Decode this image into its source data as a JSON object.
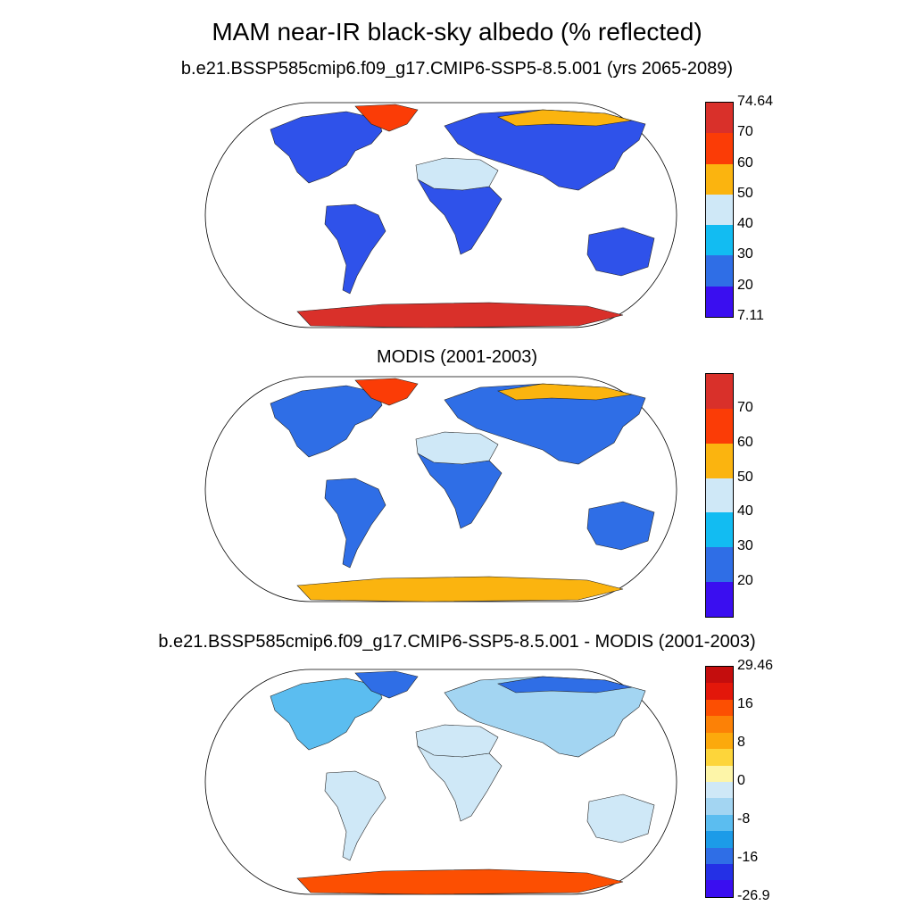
{
  "title": "MAM near-IR black-sky albedo (% reflected)",
  "panels": [
    {
      "title": "b.e21.BSSP585cmip6.f09_g17.CMIP6-SSP5-8.5.001 (yrs 2065-2089)",
      "colorbar": {
        "colors": [
          "#3a0ef0",
          "#2f6ee6",
          "#12bcf2",
          "#cfe8f7",
          "#fbb40f",
          "#fb3c06",
          "#d9302a"
        ],
        "labels": [
          "74.64",
          "70",
          "60",
          "50",
          "40",
          "30",
          "20",
          "7.11"
        ]
      },
      "regions": {
        "north_america": "#2f52ea",
        "greenland": "#fb3c06",
        "eurasia": "#2f52ea",
        "siberia_north": "#fbb40f",
        "sahara": "#cfe8f7",
        "africa": "#2f52ea",
        "south_america": "#2f52ea",
        "australia": "#2f52ea",
        "antarctica": "#d9302a"
      }
    },
    {
      "title": "MODIS (2001-2003)",
      "colorbar": {
        "colors": [
          "#3a0ef0",
          "#2f6ee6",
          "#12bcf2",
          "#cfe8f7",
          "#fbb40f",
          "#fb3c06",
          "#d9302a"
        ],
        "labels": [
          "",
          "70",
          "60",
          "50",
          "40",
          "30",
          "20",
          ""
        ]
      },
      "regions": {
        "north_america": "#2f6ee6",
        "greenland": "#fb3c06",
        "eurasia": "#2f6ee6",
        "siberia_north": "#fbb40f",
        "sahara": "#cfe8f7",
        "africa": "#2f6ee6",
        "south_america": "#2f6ee6",
        "australia": "#2f6ee6",
        "antarctica": "#fbb40f"
      }
    },
    {
      "title": "b.e21.BSSP585cmip6.f09_g17.CMIP6-SSP5-8.5.001 - MODIS (2001-2003)",
      "colorbar": {
        "colors": [
          "#3a0ef0",
          "#2430e6",
          "#2f6ee6",
          "#1c9be8",
          "#5bbdf0",
          "#a3d5f2",
          "#cfe8f7",
          "#fdf5a8",
          "#fdd53a",
          "#fca90c",
          "#fc8106",
          "#fc4f02",
          "#e3170a",
          "#c40d0d"
        ],
        "labels": [
          "29.46",
          "",
          "16",
          "",
          "8",
          "",
          "0",
          "",
          "-8",
          "",
          "-16",
          "",
          "-26.9"
        ]
      },
      "regions": {
        "north_america": "#5bbdf0",
        "greenland": "#2f6ee6",
        "eurasia": "#a3d5f2",
        "siberia_north": "#2f6ee6",
        "sahara": "#cfe8f7",
        "africa": "#cfe8f7",
        "south_america": "#cfe8f7",
        "australia": "#cfe8f7",
        "antarctica": "#fc4f02"
      }
    }
  ]
}
